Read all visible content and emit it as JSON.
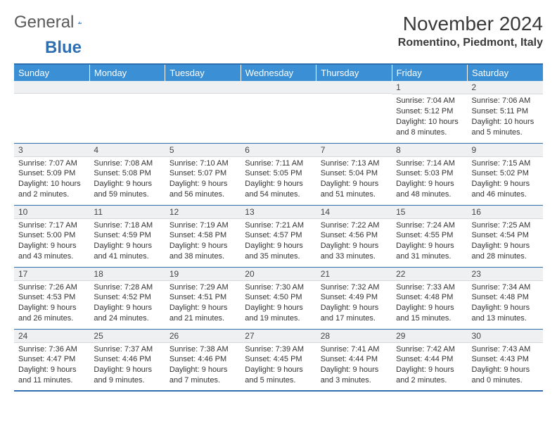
{
  "brand": {
    "word1": "General",
    "word2": "Blue"
  },
  "title": "November 2024",
  "location": "Romentino, Piedmont, Italy",
  "weekday_headers": [
    "Sunday",
    "Monday",
    "Tuesday",
    "Wednesday",
    "Thursday",
    "Friday",
    "Saturday"
  ],
  "colors": {
    "header_bg": "#3b8fd4",
    "header_text": "#ffffff",
    "rule": "#2f6fb0",
    "daynum_bg": "#eef0f2",
    "text": "#333333"
  },
  "first_weekday_index": 5,
  "days": [
    {
      "n": 1,
      "sunrise": "7:04 AM",
      "sunset": "5:12 PM",
      "daylight": "10 hours and 8 minutes."
    },
    {
      "n": 2,
      "sunrise": "7:06 AM",
      "sunset": "5:11 PM",
      "daylight": "10 hours and 5 minutes."
    },
    {
      "n": 3,
      "sunrise": "7:07 AM",
      "sunset": "5:09 PM",
      "daylight": "10 hours and 2 minutes."
    },
    {
      "n": 4,
      "sunrise": "7:08 AM",
      "sunset": "5:08 PM",
      "daylight": "9 hours and 59 minutes."
    },
    {
      "n": 5,
      "sunrise": "7:10 AM",
      "sunset": "5:07 PM",
      "daylight": "9 hours and 56 minutes."
    },
    {
      "n": 6,
      "sunrise": "7:11 AM",
      "sunset": "5:05 PM",
      "daylight": "9 hours and 54 minutes."
    },
    {
      "n": 7,
      "sunrise": "7:13 AM",
      "sunset": "5:04 PM",
      "daylight": "9 hours and 51 minutes."
    },
    {
      "n": 8,
      "sunrise": "7:14 AM",
      "sunset": "5:03 PM",
      "daylight": "9 hours and 48 minutes."
    },
    {
      "n": 9,
      "sunrise": "7:15 AM",
      "sunset": "5:02 PM",
      "daylight": "9 hours and 46 minutes."
    },
    {
      "n": 10,
      "sunrise": "7:17 AM",
      "sunset": "5:00 PM",
      "daylight": "9 hours and 43 minutes."
    },
    {
      "n": 11,
      "sunrise": "7:18 AM",
      "sunset": "4:59 PM",
      "daylight": "9 hours and 41 minutes."
    },
    {
      "n": 12,
      "sunrise": "7:19 AM",
      "sunset": "4:58 PM",
      "daylight": "9 hours and 38 minutes."
    },
    {
      "n": 13,
      "sunrise": "7:21 AM",
      "sunset": "4:57 PM",
      "daylight": "9 hours and 35 minutes."
    },
    {
      "n": 14,
      "sunrise": "7:22 AM",
      "sunset": "4:56 PM",
      "daylight": "9 hours and 33 minutes."
    },
    {
      "n": 15,
      "sunrise": "7:24 AM",
      "sunset": "4:55 PM",
      "daylight": "9 hours and 31 minutes."
    },
    {
      "n": 16,
      "sunrise": "7:25 AM",
      "sunset": "4:54 PM",
      "daylight": "9 hours and 28 minutes."
    },
    {
      "n": 17,
      "sunrise": "7:26 AM",
      "sunset": "4:53 PM",
      "daylight": "9 hours and 26 minutes."
    },
    {
      "n": 18,
      "sunrise": "7:28 AM",
      "sunset": "4:52 PM",
      "daylight": "9 hours and 24 minutes."
    },
    {
      "n": 19,
      "sunrise": "7:29 AM",
      "sunset": "4:51 PM",
      "daylight": "9 hours and 21 minutes."
    },
    {
      "n": 20,
      "sunrise": "7:30 AM",
      "sunset": "4:50 PM",
      "daylight": "9 hours and 19 minutes."
    },
    {
      "n": 21,
      "sunrise": "7:32 AM",
      "sunset": "4:49 PM",
      "daylight": "9 hours and 17 minutes."
    },
    {
      "n": 22,
      "sunrise": "7:33 AM",
      "sunset": "4:48 PM",
      "daylight": "9 hours and 15 minutes."
    },
    {
      "n": 23,
      "sunrise": "7:34 AM",
      "sunset": "4:48 PM",
      "daylight": "9 hours and 13 minutes."
    },
    {
      "n": 24,
      "sunrise": "7:36 AM",
      "sunset": "4:47 PM",
      "daylight": "9 hours and 11 minutes."
    },
    {
      "n": 25,
      "sunrise": "7:37 AM",
      "sunset": "4:46 PM",
      "daylight": "9 hours and 9 minutes."
    },
    {
      "n": 26,
      "sunrise": "7:38 AM",
      "sunset": "4:46 PM",
      "daylight": "9 hours and 7 minutes."
    },
    {
      "n": 27,
      "sunrise": "7:39 AM",
      "sunset": "4:45 PM",
      "daylight": "9 hours and 5 minutes."
    },
    {
      "n": 28,
      "sunrise": "7:41 AM",
      "sunset": "4:44 PM",
      "daylight": "9 hours and 3 minutes."
    },
    {
      "n": 29,
      "sunrise": "7:42 AM",
      "sunset": "4:44 PM",
      "daylight": "9 hours and 2 minutes."
    },
    {
      "n": 30,
      "sunrise": "7:43 AM",
      "sunset": "4:43 PM",
      "daylight": "9 hours and 0 minutes."
    }
  ],
  "labels": {
    "sunrise": "Sunrise:",
    "sunset": "Sunset:",
    "daylight": "Daylight:"
  }
}
